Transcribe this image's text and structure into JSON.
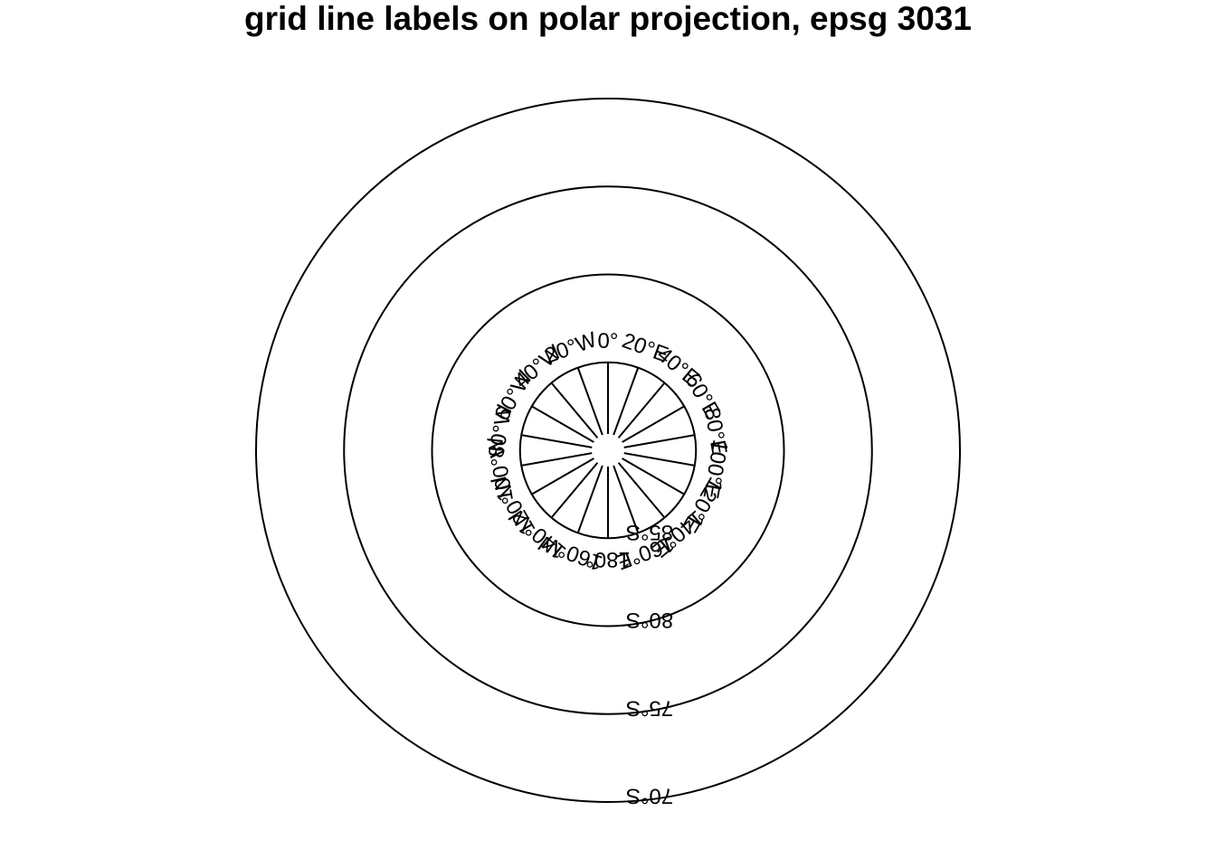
{
  "title": "grid line labels on polar projection, epsg 3031",
  "map": {
    "projection": "epsg 3031",
    "line_color": "#000000",
    "background": "#ffffff",
    "parallels": [
      {
        "lat": -85,
        "label": "85°S"
      },
      {
        "lat": -80,
        "label": "80°S"
      },
      {
        "lat": -75,
        "label": "75°S"
      },
      {
        "lat": -70,
        "label": "70°S"
      }
    ],
    "meridians": [
      {
        "lon": 0,
        "label": "0°"
      },
      {
        "lon": 20,
        "label": "20°E"
      },
      {
        "lon": 40,
        "label": "40°E"
      },
      {
        "lon": 60,
        "label": "60°E"
      },
      {
        "lon": 80,
        "label": "80°E"
      },
      {
        "lon": 100,
        "label": "100°E"
      },
      {
        "lon": 120,
        "label": "120°E"
      },
      {
        "lon": 140,
        "label": "140°E"
      },
      {
        "lon": 160,
        "label": "160°E"
      },
      {
        "lon": 180,
        "label": "180°"
      },
      {
        "lon": -160,
        "label": "160°W"
      },
      {
        "lon": -140,
        "label": "140°W"
      },
      {
        "lon": -120,
        "label": "120°W"
      },
      {
        "lon": -100,
        "label": "100°W"
      },
      {
        "lon": -80,
        "label": "80°W"
      },
      {
        "lon": -60,
        "label": "60°W"
      },
      {
        "lon": -40,
        "label": "40°W"
      },
      {
        "lon": -20,
        "label": "20°W"
      }
    ]
  }
}
